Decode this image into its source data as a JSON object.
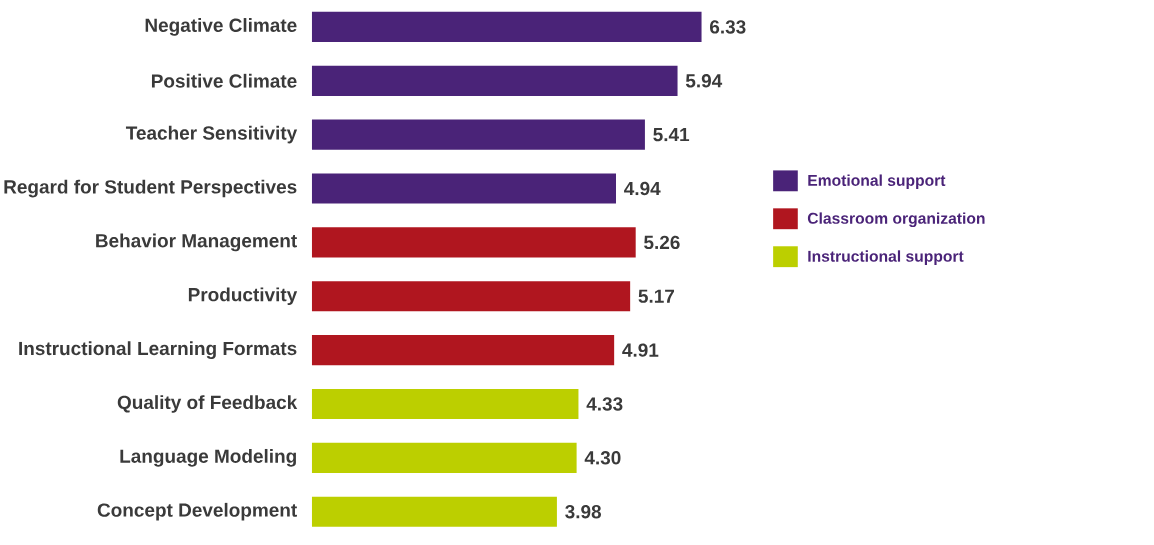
{
  "chart_data": {
    "type": "bar",
    "orientation": "horizontal",
    "legend": "right",
    "categories": [
      "Negative Climate",
      "Positive Climate",
      "Teacher Sensitivity",
      "Regard for Student Perspectives",
      "Behavior Management",
      "Productivity",
      "Instructional Learning Formats",
      "Quality of Feedback",
      "Language Modeling",
      "Concept Development"
    ],
    "series": [
      {
        "name": "Emotional support",
        "color": "#4a2378",
        "values": [
          6.33,
          5.94,
          5.41,
          4.94,
          null,
          null,
          null,
          null,
          null,
          null
        ],
        "value_labels": [
          "6.33",
          "5.94",
          "5.41",
          "4.94",
          null,
          null,
          null,
          null,
          null,
          null
        ]
      },
      {
        "name": "Classroom organization",
        "color": "#b0161f",
        "values": [
          null,
          null,
          null,
          null,
          5.26,
          5.17,
          4.91,
          null,
          null,
          null
        ],
        "value_labels": [
          null,
          null,
          null,
          null,
          "5.26",
          "5.17",
          "4.91",
          null,
          null,
          null
        ]
      },
      {
        "name": "Instructional support",
        "color": "#bccf00",
        "values": [
          null,
          null,
          null,
          null,
          null,
          null,
          null,
          4.33,
          4.3,
          3.98
        ],
        "value_labels": [
          null,
          null,
          null,
          null,
          null,
          null,
          null,
          "4.33",
          "4.30",
          "3.98"
        ]
      }
    ]
  }
}
